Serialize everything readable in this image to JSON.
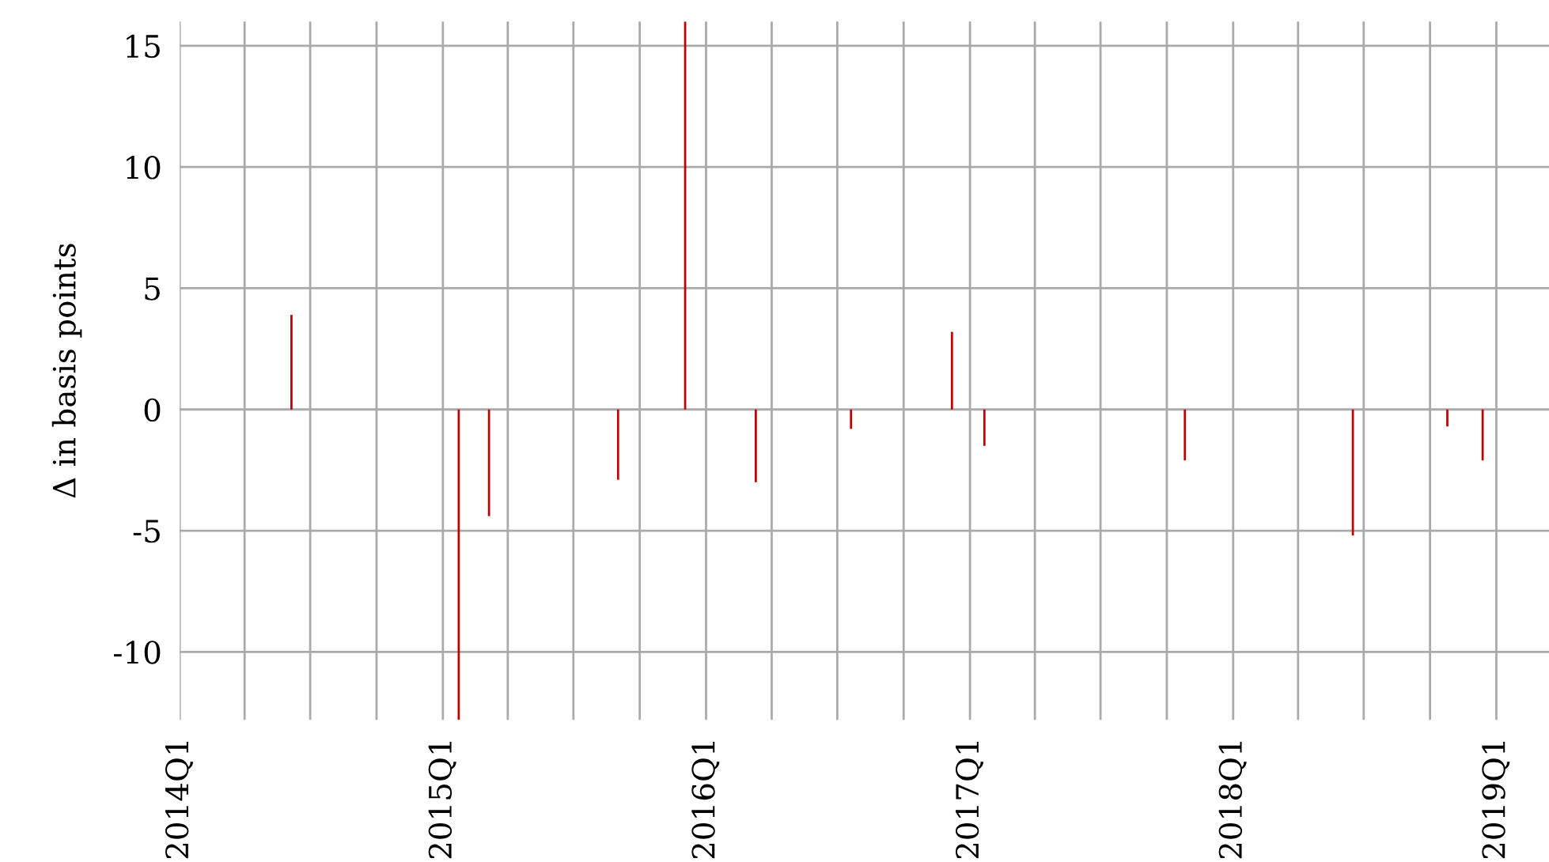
{
  "chart_data": {
    "type": "bar",
    "ylabel": "Δ in basis points",
    "x": [
      "2014-06-05",
      "2015-01-23",
      "2015-03-06",
      "2015-09-01",
      "2015-12-03",
      "2016-03-10",
      "2016-07-20",
      "2016-12-07",
      "2017-01-21",
      "2017-10-26",
      "2018-06-16",
      "2018-10-25",
      "2018-12-13"
    ],
    "series": [
      {
        "color": "#c00000",
        "values": [
          3.9,
          -12.8,
          -4.4,
          -2.9,
          16,
          -3.0,
          -0.8,
          3.2,
          -1.5,
          -2.1,
          -5.2,
          -0.7,
          -2.1
        ]
      }
    ],
    "xlim": [
      "2014-01-01",
      "2019-03-15"
    ],
    "xticks": [
      {
        "value": "2014-01-01",
        "label": "2014Q1"
      },
      {
        "value": "2014-04-01",
        "label": null
      },
      {
        "value": "2014-07-01",
        "label": null
      },
      {
        "value": "2014-10-01",
        "label": null
      },
      {
        "value": "2015-01-01",
        "label": "2015Q1"
      },
      {
        "value": "2015-04-01",
        "label": null
      },
      {
        "value": "2015-07-01",
        "label": null
      },
      {
        "value": "2015-10-01",
        "label": null
      },
      {
        "value": "2016-01-01",
        "label": "2016Q1"
      },
      {
        "value": "2016-04-01",
        "label": null
      },
      {
        "value": "2016-07-01",
        "label": null
      },
      {
        "value": "2016-10-01",
        "label": null
      },
      {
        "value": "2017-01-01",
        "label": "2017Q1"
      },
      {
        "value": "2017-04-01",
        "label": null
      },
      {
        "value": "2017-07-01",
        "label": null
      },
      {
        "value": "2017-10-01",
        "label": null
      },
      {
        "value": "2018-01-01",
        "label": "2018Q1"
      },
      {
        "value": "2018-04-01",
        "label": null
      },
      {
        "value": "2018-07-01",
        "label": null
      },
      {
        "value": "2018-10-01",
        "label": null
      },
      {
        "value": "2019-01-01",
        "label": "2019Q1"
      }
    ],
    "ylim": [
      -12.8,
      16
    ],
    "yticks": [
      {
        "value": -10,
        "label": "-10"
      },
      {
        "value": -5,
        "label": "-5"
      },
      0,
      5,
      10,
      15
    ],
    "grid": true
  }
}
